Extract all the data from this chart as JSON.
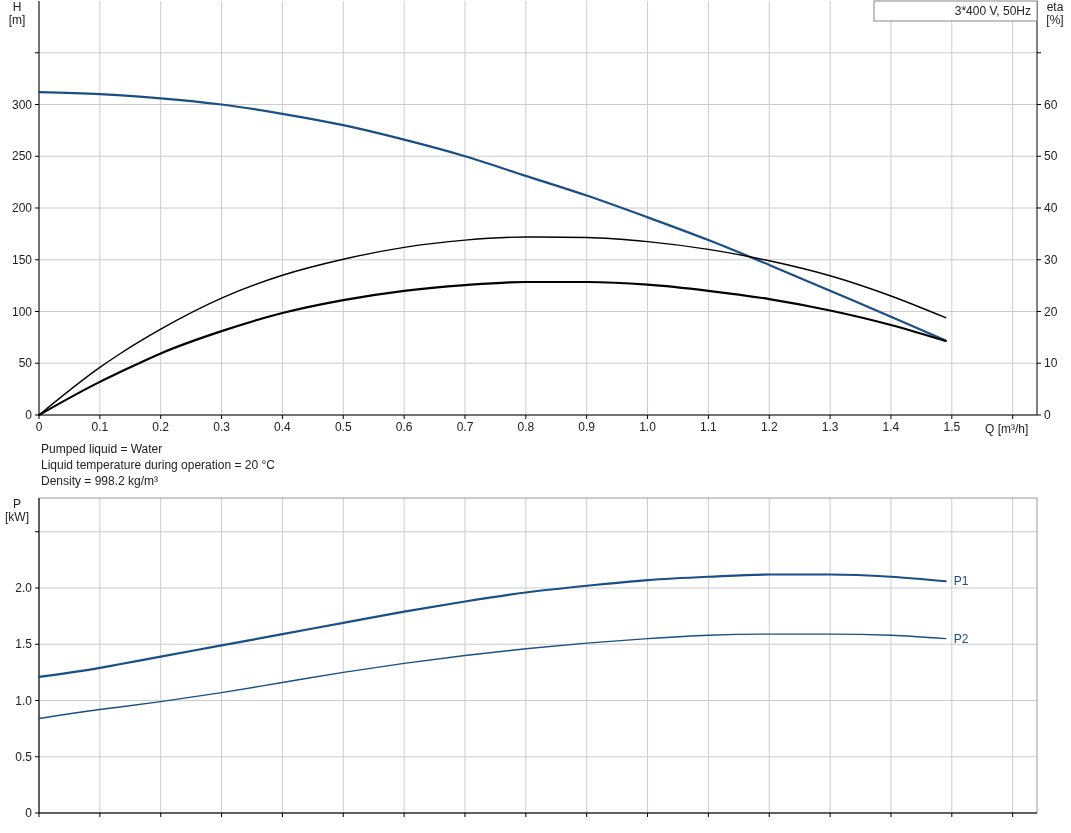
{
  "chart_data": [
    {
      "type": "line",
      "title": "3*400 V, 50Hz",
      "xlabel": "Q [m³/h]",
      "ylabel": "H [m]",
      "y2label": "eta [%]",
      "xlim": [
        0,
        1.64
      ],
      "xticks": [
        0,
        0.1,
        0.2,
        0.3,
        0.4,
        0.5,
        0.6,
        0.7,
        0.8,
        0.9,
        {
          "value": 1,
          "label": "1.0"
        },
        1.1,
        1.2,
        1.3,
        1.4,
        1.5,
        {
          "value": 1.6,
          "label": null
        }
      ],
      "ylim": [
        0,
        400
      ],
      "yticks": [
        0,
        50,
        100,
        150,
        200,
        250,
        300,
        {
          "value": 350,
          "label": null
        }
      ],
      "y2lim": [
        0,
        80
      ],
      "y2ticks": [
        0,
        10,
        20,
        30,
        40,
        50,
        60,
        {
          "value": 70,
          "label": null
        }
      ],
      "grid": true,
      "annotations": [
        "Pumped liquid = Water",
        "Liquid temperature during operation = 20 °C",
        "Density = 998.2 kg/m³"
      ],
      "x": [
        0,
        0.1,
        0.13,
        0.2,
        0.3,
        0.4,
        0.5,
        0.6,
        0.7,
        0.8,
        0.9,
        1.0,
        1.1,
        1.2,
        1.3,
        1.4,
        1.49
      ],
      "series": [
        {
          "color": "#1a4f86",
          "values": [
            312,
            310,
            309,
            306,
            300,
            291,
            280,
            266,
            250,
            231,
            212,
            191,
            169,
            145,
            120,
            95,
            72
          ]
        },
        {
          "color": "#000000",
          "axis": "y2",
          "values": [
            0,
            9.2,
            11.6,
            16.6,
            22.6,
            27.0,
            30.1,
            32.4,
            33.8,
            34.4,
            34.3,
            33.5,
            32.0,
            29.8,
            26.9,
            23.0,
            18.8
          ]
        },
        {
          "color": "#000000",
          "axis": "y2",
          "values": [
            0,
            6.4,
            8.1,
            11.9,
            16.2,
            19.7,
            22.2,
            24.0,
            25.1,
            25.7,
            25.7,
            25.2,
            24.0,
            22.4,
            20.2,
            17.4,
            14.3
          ]
        }
      ]
    },
    {
      "type": "line",
      "ylabel": "P [kW]",
      "xlim": [
        0,
        1.64
      ],
      "xticks": [
        0,
        0.1,
        0.2,
        0.3,
        0.4,
        0.5,
        0.6,
        0.7,
        0.8,
        0.9,
        1,
        1.1,
        1.2,
        1.3,
        1.4,
        1.5,
        1.6
      ],
      "tick_labels": "y",
      "ylim": [
        0,
        2.8
      ],
      "yticks": [
        0,
        0.5,
        {
          "value": 1,
          "label": "1.0"
        },
        1.5,
        {
          "value": 2,
          "label": "2.0"
        },
        {
          "value": 2.5,
          "label": null
        }
      ],
      "grid": true,
      "x": [
        0,
        0.1,
        0.13,
        0.2,
        0.3,
        0.4,
        0.5,
        0.6,
        0.7,
        0.8,
        0.9,
        1.0,
        1.1,
        1.2,
        1.3,
        1.4,
        1.49
      ],
      "series": [
        {
          "name": "P1",
          "color": "#1a4f86",
          "values": [
            1.21,
            1.29,
            1.32,
            1.39,
            1.49,
            1.59,
            1.69,
            1.79,
            1.88,
            1.96,
            2.02,
            2.07,
            2.1,
            2.12,
            2.12,
            2.1,
            2.06
          ]
        },
        {
          "name": "P2",
          "color": "#1a4f86",
          "values": [
            0.84,
            0.92,
            0.94,
            0.99,
            1.07,
            1.16,
            1.25,
            1.33,
            1.4,
            1.46,
            1.51,
            1.55,
            1.58,
            1.59,
            1.59,
            1.58,
            1.55
          ]
        }
      ]
    }
  ]
}
